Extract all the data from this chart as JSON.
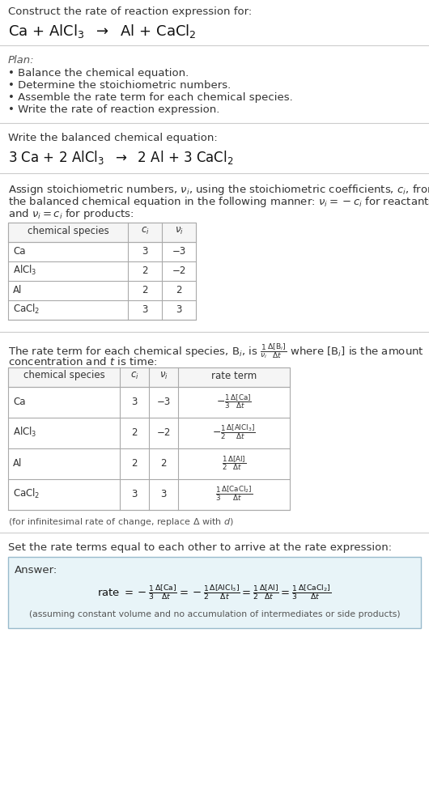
{
  "bg_color": "#ffffff",
  "text_color": "#333333",
  "gray_text": "#555555",
  "light_gray": "#888888",
  "section1_title": "Construct the rate of reaction expression for:",
  "section2_bullets": [
    "• Balance the chemical equation.",
    "• Determine the stoichiometric numbers.",
    "• Assemble the rate term for each chemical species.",
    "• Write the rate of reaction expression."
  ],
  "table1_species": [
    "Ca",
    "AlCl$_3$",
    "Al",
    "CaCl$_2$"
  ],
  "table1_ci": [
    "3",
    "2",
    "2",
    "3"
  ],
  "table1_nu": [
    "−3",
    "−2",
    "2",
    "3"
  ],
  "table2_rate_terms": [
    "$-\\frac{1}{3}\\frac{\\Delta[\\mathrm{Ca}]}{\\Delta t}$",
    "$-\\frac{1}{2}\\frac{\\Delta[\\mathrm{AlCl_3}]}{\\Delta t}$",
    "$\\frac{1}{2}\\frac{\\Delta[\\mathrm{Al}]}{\\Delta t}$",
    "$\\frac{1}{3}\\frac{\\Delta[\\mathrm{CaCl_2}]}{\\Delta t}$"
  ],
  "answer_box_color": "#e8f4f8",
  "answer_box_border": "#99bbcc",
  "fig_width": 5.3,
  "fig_height": 9.76,
  "dpi": 100
}
